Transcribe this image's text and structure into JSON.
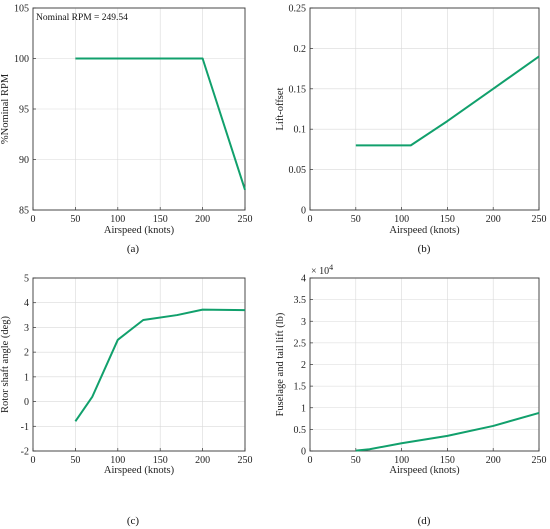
{
  "colors": {
    "series": "#11a06c"
  },
  "chart_data": [
    {
      "type": "line",
      "caption": "(a)",
      "xlabel": "Airspeed (knots)",
      "ylabel": "%Nominal RPM",
      "xlim": [
        0,
        250
      ],
      "ylim": [
        85,
        105
      ],
      "xticks": [
        0,
        50,
        100,
        150,
        200,
        250
      ],
      "yticks": [
        85,
        90,
        95,
        100,
        105
      ],
      "annotation": "Nominal RPM = 249.54",
      "grid": true,
      "x": [
        50,
        100,
        150,
        200,
        250
      ],
      "y": [
        100,
        100,
        100,
        100,
        87
      ]
    },
    {
      "type": "line",
      "caption": "(b)",
      "xlabel": "Airspeed (knots)",
      "ylabel": "Lift-offset",
      "xlim": [
        0,
        250
      ],
      "ylim": [
        0,
        0.25
      ],
      "xticks": [
        0,
        50,
        100,
        150,
        200,
        250
      ],
      "yticks": [
        0,
        0.05,
        0.1,
        0.15,
        0.2,
        0.25
      ],
      "grid": true,
      "x": [
        50,
        110,
        150,
        200,
        250
      ],
      "y": [
        0.08,
        0.08,
        0.11,
        0.15,
        0.19
      ]
    },
    {
      "type": "line",
      "caption": "(c)",
      "xlabel": "Airspeed (knots)",
      "ylabel": "Rotor shaft angle (deg)",
      "xlim": [
        0,
        250
      ],
      "ylim": [
        -2,
        5
      ],
      "xticks": [
        0,
        50,
        100,
        150,
        200,
        250
      ],
      "yticks": [
        -2,
        -1,
        0,
        1,
        2,
        3,
        4,
        5
      ],
      "grid": true,
      "x": [
        50,
        70,
        100,
        130,
        170,
        200,
        250
      ],
      "y": [
        -0.8,
        0.2,
        2.5,
        3.3,
        3.5,
        3.72,
        3.7
      ]
    },
    {
      "type": "line",
      "caption": "(d)",
      "xlabel": "Airspeed (knots)",
      "ylabel": "Fuselage and tail lift (lb)",
      "xlim": [
        0,
        250
      ],
      "ylim": [
        0,
        4
      ],
      "xticks": [
        0,
        50,
        100,
        150,
        200,
        250
      ],
      "yticks": [
        0,
        0.5,
        1,
        1.5,
        2,
        2.5,
        3,
        3.5,
        4
      ],
      "exponent_base": "× 10",
      "exponent_power": "4",
      "grid": true,
      "x": [
        50,
        65,
        100,
        150,
        200,
        250
      ],
      "y": [
        0.01,
        0.04,
        0.18,
        0.35,
        0.58,
        0.88
      ]
    }
  ]
}
